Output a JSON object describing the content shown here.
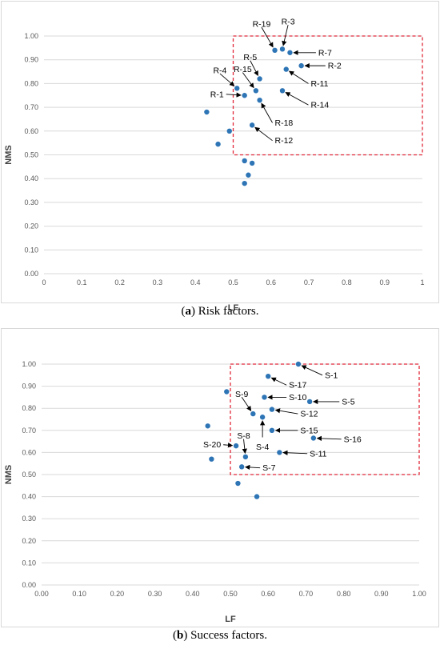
{
  "chart_data": [
    {
      "type": "scatter",
      "xlabel": "LF",
      "ylabel": "NMS",
      "xlim": [
        0,
        1
      ],
      "ylim": [
        0,
        1
      ],
      "x_ticks": [
        "0",
        "0.1",
        "0.2",
        "0.3",
        "0.4",
        "0.5",
        "0.6",
        "0.7",
        "0.8",
        "0.9",
        "1"
      ],
      "y_ticks": [
        "0.00",
        "0.10",
        "0.20",
        "0.30",
        "0.40",
        "0.50",
        "0.60",
        "0.70",
        "0.80",
        "0.90",
        "1.00"
      ],
      "grid": "horizontal",
      "marker_color": "#2e75b6",
      "highlight_box": {
        "x": [
          0.5,
          1.0
        ],
        "y": [
          0.5,
          1.0
        ],
        "color": "#e0283a",
        "style": "dashed"
      },
      "points": [
        {
          "x": 0.43,
          "y": 0.68
        },
        {
          "x": 0.46,
          "y": 0.545
        },
        {
          "x": 0.49,
          "y": 0.6
        },
        {
          "x": 0.51,
          "y": 0.78
        },
        {
          "x": 0.53,
          "y": 0.75
        },
        {
          "x": 0.53,
          "y": 0.475
        },
        {
          "x": 0.53,
          "y": 0.38
        },
        {
          "x": 0.54,
          "y": 0.415
        },
        {
          "x": 0.55,
          "y": 0.625
        },
        {
          "x": 0.55,
          "y": 0.465
        },
        {
          "x": 0.56,
          "y": 0.77
        },
        {
          "x": 0.57,
          "y": 0.82
        },
        {
          "x": 0.57,
          "y": 0.73
        },
        {
          "x": 0.61,
          "y": 0.94
        },
        {
          "x": 0.63,
          "y": 0.945
        },
        {
          "x": 0.63,
          "y": 0.77
        },
        {
          "x": 0.64,
          "y": 0.86
        },
        {
          "x": 0.65,
          "y": 0.93
        },
        {
          "x": 0.68,
          "y": 0.875
        }
      ],
      "annotations": [
        {
          "label": "R-19",
          "x": 0.61,
          "y": 0.94,
          "tx": 0.575,
          "ty": 1.05,
          "anchor": "middle"
        },
        {
          "label": "R-3",
          "x": 0.63,
          "y": 0.945,
          "tx": 0.645,
          "ty": 1.06,
          "anchor": "middle"
        },
        {
          "label": "R-7",
          "x": 0.65,
          "y": 0.93,
          "tx": 0.725,
          "ty": 0.93,
          "anchor": "start"
        },
        {
          "label": "R-5",
          "x": 0.57,
          "y": 0.82,
          "tx": 0.545,
          "ty": 0.91,
          "anchor": "middle"
        },
        {
          "label": "R-2",
          "x": 0.68,
          "y": 0.875,
          "tx": 0.75,
          "ty": 0.875,
          "anchor": "start"
        },
        {
          "label": "R-15",
          "x": 0.56,
          "y": 0.77,
          "tx": 0.525,
          "ty": 0.86,
          "anchor": "middle"
        },
        {
          "label": "R-4",
          "x": 0.51,
          "y": 0.78,
          "tx": 0.465,
          "ty": 0.855,
          "anchor": "middle"
        },
        {
          "label": "R-11",
          "x": 0.64,
          "y": 0.86,
          "tx": 0.705,
          "ty": 0.8,
          "anchor": "start"
        },
        {
          "label": "R-1",
          "x": 0.53,
          "y": 0.75,
          "tx": 0.475,
          "ty": 0.755,
          "anchor": "end"
        },
        {
          "label": "R-14",
          "x": 0.63,
          "y": 0.77,
          "tx": 0.705,
          "ty": 0.71,
          "anchor": "start"
        },
        {
          "label": "R-18",
          "x": 0.57,
          "y": 0.73,
          "tx": 0.61,
          "ty": 0.635,
          "anchor": "start"
        },
        {
          "label": "R-12",
          "x": 0.55,
          "y": 0.625,
          "tx": 0.61,
          "ty": 0.56,
          "anchor": "start"
        }
      ]
    },
    {
      "type": "scatter",
      "xlabel": "LF",
      "ylabel": "NMS",
      "xlim": [
        0,
        1
      ],
      "ylim": [
        0,
        1
      ],
      "x_ticks": [
        "0.00",
        "0.10",
        "0.20",
        "0.30",
        "0.40",
        "0.50",
        "0.60",
        "0.70",
        "0.80",
        "0.90",
        "1.00"
      ],
      "y_ticks": [
        "0.00",
        "0.10",
        "0.20",
        "0.30",
        "0.40",
        "0.50",
        "0.60",
        "0.70",
        "0.80",
        "0.90",
        "1.00"
      ],
      "grid": "horizontal",
      "marker_color": "#2e75b6",
      "highlight_box": {
        "x": [
          0.5,
          1.0
        ],
        "y": [
          0.5,
          1.0
        ],
        "color": "#e0283a",
        "style": "dashed"
      },
      "points": [
        {
          "x": 0.44,
          "y": 0.72
        },
        {
          "x": 0.45,
          "y": 0.57
        },
        {
          "x": 0.49,
          "y": 0.875
        },
        {
          "x": 0.515,
          "y": 0.63
        },
        {
          "x": 0.52,
          "y": 0.46
        },
        {
          "x": 0.53,
          "y": 0.535
        },
        {
          "x": 0.54,
          "y": 0.58
        },
        {
          "x": 0.56,
          "y": 0.775
        },
        {
          "x": 0.57,
          "y": 0.4
        },
        {
          "x": 0.585,
          "y": 0.76
        },
        {
          "x": 0.59,
          "y": 0.85
        },
        {
          "x": 0.6,
          "y": 0.945
        },
        {
          "x": 0.61,
          "y": 0.795
        },
        {
          "x": 0.61,
          "y": 0.7
        },
        {
          "x": 0.63,
          "y": 0.6
        },
        {
          "x": 0.68,
          "y": 1.0
        },
        {
          "x": 0.71,
          "y": 0.83
        },
        {
          "x": 0.72,
          "y": 0.665
        }
      ],
      "annotations": [
        {
          "label": "S-1",
          "x": 0.68,
          "y": 1.0,
          "tx": 0.75,
          "ty": 0.95,
          "anchor": "start"
        },
        {
          "label": "S-17",
          "x": 0.6,
          "y": 0.945,
          "tx": 0.655,
          "ty": 0.905,
          "anchor": "start"
        },
        {
          "label": "S-9",
          "x": 0.56,
          "y": 0.775,
          "tx": 0.53,
          "ty": 0.865,
          "anchor": "middle"
        },
        {
          "label": "S-10",
          "x": 0.59,
          "y": 0.85,
          "tx": 0.655,
          "ty": 0.85,
          "anchor": "start"
        },
        {
          "label": "S-5",
          "x": 0.71,
          "y": 0.83,
          "tx": 0.795,
          "ty": 0.83,
          "anchor": "start"
        },
        {
          "label": "S-12",
          "x": 0.61,
          "y": 0.795,
          "tx": 0.685,
          "ty": 0.775,
          "anchor": "start"
        },
        {
          "label": "S-8",
          "x": 0.54,
          "y": 0.58,
          "tx": 0.535,
          "ty": 0.675,
          "anchor": "middle"
        },
        {
          "label": "S-4",
          "x": 0.585,
          "y": 0.76,
          "tx": 0.585,
          "ty": 0.625,
          "anchor": "middle"
        },
        {
          "label": "S-15",
          "x": 0.61,
          "y": 0.7,
          "tx": 0.685,
          "ty": 0.7,
          "anchor": "start"
        },
        {
          "label": "S-16",
          "x": 0.72,
          "y": 0.665,
          "tx": 0.8,
          "ty": 0.66,
          "anchor": "start"
        },
        {
          "label": "S-20",
          "x": 0.515,
          "y": 0.63,
          "tx": 0.475,
          "ty": 0.635,
          "anchor": "end"
        },
        {
          "label": "S-11",
          "x": 0.63,
          "y": 0.6,
          "tx": 0.71,
          "ty": 0.595,
          "anchor": "start"
        },
        {
          "label": "S-7",
          "x": 0.53,
          "y": 0.535,
          "tx": 0.585,
          "ty": 0.53,
          "anchor": "start"
        }
      ]
    }
  ],
  "captions": {
    "a_letter": "a",
    "a_text": "Risk factors.",
    "b_letter": "b",
    "b_text": "Success factors."
  }
}
